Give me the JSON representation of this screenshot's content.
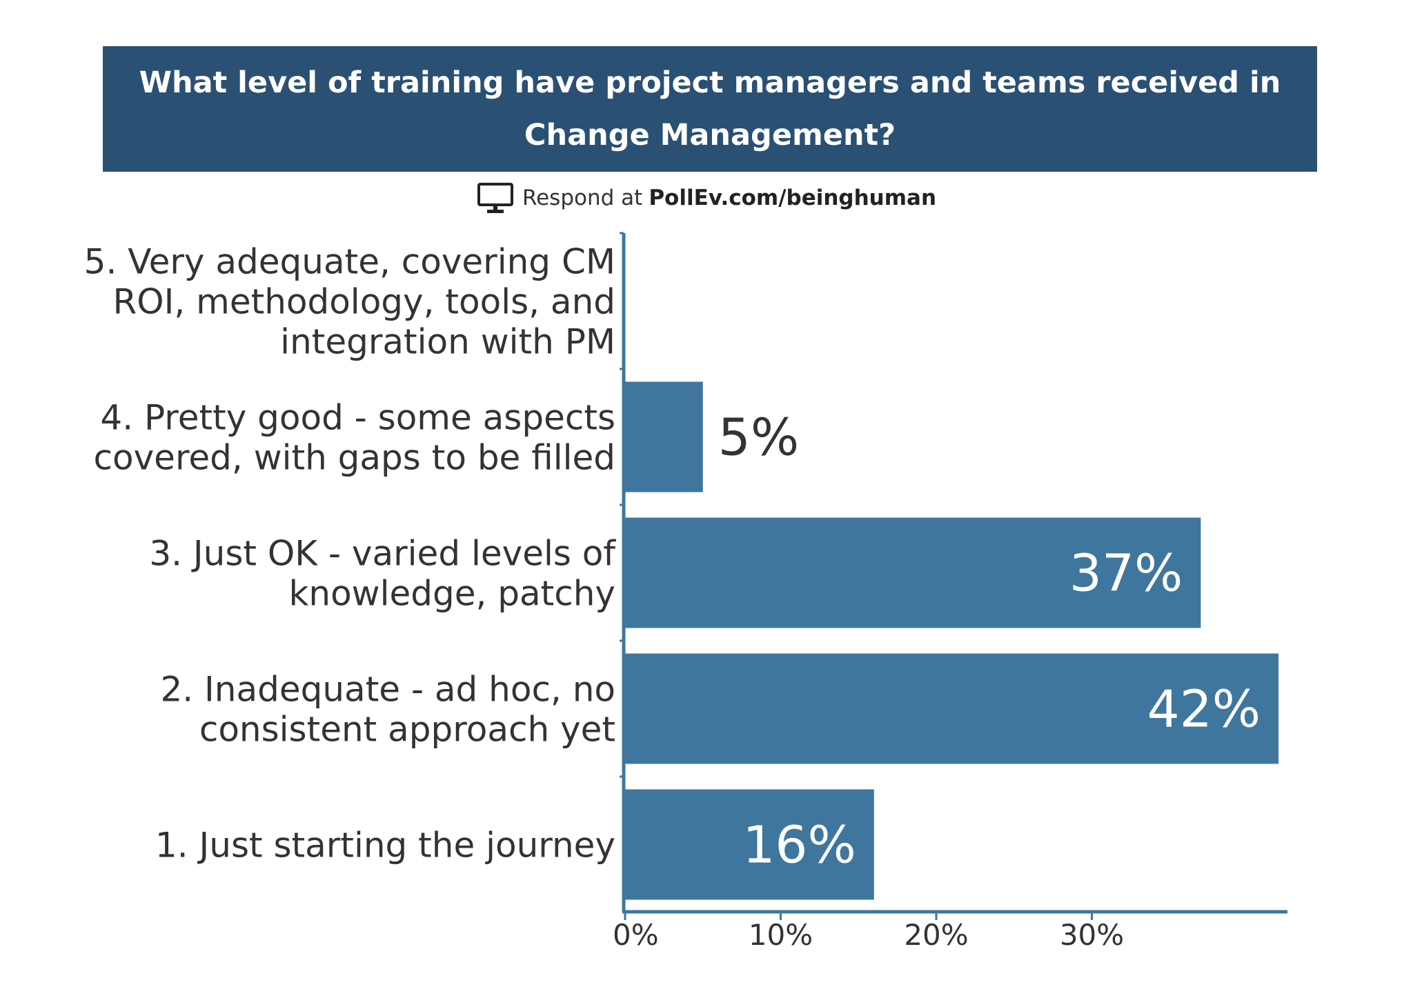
{
  "header": {
    "title": "What level of training have project managers and teams received in Change Management?"
  },
  "respond": {
    "prefix": "Respond at",
    "url": "PollEv.com/beinghuman"
  },
  "chart_data": {
    "type": "bar",
    "orientation": "horizontal",
    "title": "What level of training have project managers and teams received in Change Management?",
    "categories": [
      "5. Very adequate, covering CM ROI, methodology, tools, and integration with PM",
      "4. Pretty good - some aspects covered, with gaps to be filled",
      "3. Just OK - varied levels of knowledge, patchy",
      "2. Inadequate - ad hoc, no consistent approach yet",
      "1. Just starting the journey"
    ],
    "category_lines": [
      [
        "5. Very adequate, covering CM",
        "ROI, methodology, tools, and",
        "integration with PM"
      ],
      [
        "4. Pretty good - some aspects",
        "covered, with gaps to be filled"
      ],
      [
        "3. Just OK - varied levels of",
        "knowledge, patchy"
      ],
      [
        "2. Inadequate - ad hoc, no",
        "consistent approach yet"
      ],
      [
        "1. Just starting the journey"
      ]
    ],
    "values": [
      0,
      5,
      37,
      42,
      16
    ],
    "data_labels": [
      "",
      "5%",
      "37%",
      "42%",
      "16%"
    ],
    "xticks": [
      0,
      10,
      20,
      30
    ],
    "xtick_labels": [
      "0%",
      "10%",
      "20%",
      "30%"
    ],
    "xlim": [
      0,
      43
    ],
    "xlabel": "",
    "ylabel": "",
    "bar_color": "#3e769e",
    "axis_color": "#3e769e",
    "grid": false
  }
}
